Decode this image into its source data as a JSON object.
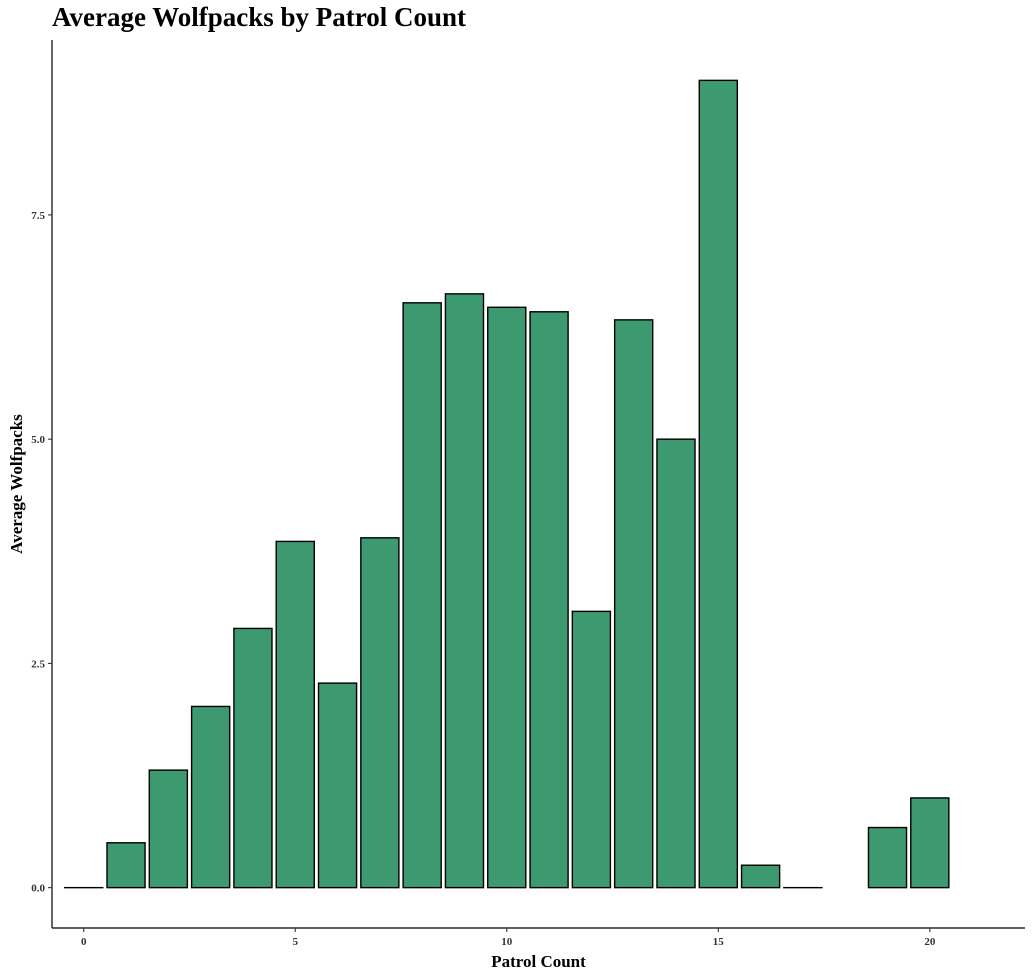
{
  "chart_data": {
    "type": "bar",
    "title": "Average Wolfpacks by Patrol Count",
    "xlabel": "Patrol Count",
    "ylabel": "Average Wolfpacks",
    "x": [
      0,
      1,
      2,
      3,
      4,
      5,
      6,
      7,
      8,
      9,
      10,
      11,
      12,
      13,
      14,
      15,
      16,
      17,
      19,
      20
    ],
    "values": [
      0.0,
      0.5,
      1.31,
      2.02,
      2.89,
      3.86,
      2.28,
      3.9,
      6.52,
      6.62,
      6.47,
      6.42,
      3.08,
      6.33,
      5.0,
      9.0,
      0.25,
      0.0,
      0.67,
      1.0
    ],
    "xlim": [
      -0.75,
      22.25
    ],
    "ylim": [
      -0.45,
      9.45
    ],
    "x_ticks": [
      0,
      5,
      10,
      15,
      20
    ],
    "x_tick_labels": [
      "0",
      "5",
      "10",
      "15",
      "20"
    ],
    "y_ticks": [
      0,
      2.5,
      5,
      7.5
    ],
    "y_tick_labels": [
      "0.0",
      "2.5",
      "5.0",
      "7.5"
    ],
    "bar_color": "#3d9970",
    "bar_edge_color": "#000000",
    "grid": false,
    "legend": "none"
  }
}
